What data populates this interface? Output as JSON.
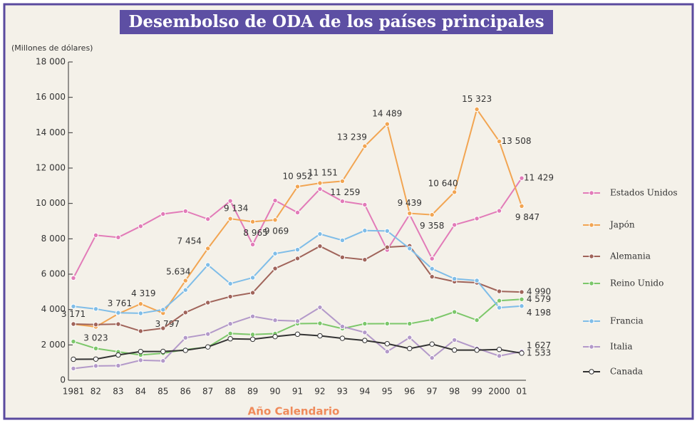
{
  "chart_data": {
    "type": "line",
    "title": "Desembolso de ODA de los países principales",
    "y_label": "(Millones de dólares)",
    "x_label": "Año Calendario",
    "categories": [
      "1981",
      "82",
      "83",
      "84",
      "85",
      "86",
      "87",
      "88",
      "89",
      "90",
      "91",
      "92",
      "93",
      "94",
      "95",
      "96",
      "97",
      "98",
      "99",
      "2000",
      "01"
    ],
    "ylim": [
      0,
      18000
    ],
    "yticks": [
      0,
      {
        "value": 2000,
        "label": "2 000"
      },
      {
        "value": 4000,
        "label": "4 000"
      },
      {
        "value": 6000,
        "label": "6 000"
      },
      {
        "value": 8000,
        "label": "8 000"
      },
      {
        "value": 10000,
        "label": "10 000"
      },
      {
        "value": 12000,
        "label": "12 000"
      },
      {
        "value": 14000,
        "label": "14 000"
      },
      {
        "value": 16000,
        "label": "16 000"
      },
      {
        "value": 18000,
        "label": "18 000"
      }
    ],
    "series": [
      {
        "name": "Estados Unidos",
        "color": "#e27bb8",
        "values": [
          5782,
          8202,
          8081,
          8711,
          9403,
          9564,
          9115,
          10141,
          7676,
          10166,
          9484,
          10815,
          10123,
          9927,
          7367,
          9377,
          6878,
          8786,
          9145,
          9581,
          11429
        ],
        "value_labels": [
          null,
          null,
          null,
          null,
          null,
          null,
          null,
          null,
          null,
          null,
          null,
          null,
          null,
          null,
          null,
          null,
          null,
          null,
          null,
          null,
          "11 429"
        ]
      },
      {
        "name": "Japón",
        "color": "#f2a552",
        "values": [
          3171,
          3023,
          3761,
          4319,
          3797,
          5634,
          7454,
          9134,
          8965,
          9069,
          10952,
          11151,
          11259,
          13239,
          14489,
          9439,
          9358,
          10640,
          15323,
          13508,
          9847
        ],
        "value_labels": [
          "3 171",
          "3 023",
          "3 761",
          "4 319",
          "3 797",
          "5.634",
          "7 454",
          "9 134",
          "8 965",
          "9 069",
          "10 952",
          "11 151",
          "11 259",
          "13 239",
          "14 489",
          "9 439",
          "9 358",
          "10 640",
          "15 323",
          "13 508",
          "9 847"
        ]
      },
      {
        "name": "Alemania",
        "color": "#a0645a",
        "values": [
          3181,
          3152,
          3176,
          2782,
          2942,
          3832,
          4391,
          4731,
          4949,
          6320,
          6890,
          7583,
          6954,
          6818,
          7524,
          7601,
          5857,
          5581,
          5515,
          5030,
          4990
        ],
        "value_labels": [
          null,
          null,
          null,
          null,
          null,
          null,
          null,
          null,
          null,
          null,
          null,
          null,
          null,
          null,
          null,
          null,
          null,
          null,
          null,
          null,
          "4 990"
        ]
      },
      {
        "name": "Reino Unido",
        "color": "#7cc76a",
        "values": [
          2192,
          1800,
          1610,
          1430,
          1530,
          1737,
          1871,
          2645,
          2587,
          2638,
          3201,
          3217,
          2920,
          3197,
          3202,
          3199,
          3433,
          3864,
          3401,
          4501,
          4579
        ],
        "value_labels": [
          null,
          null,
          null,
          null,
          null,
          null,
          null,
          null,
          null,
          null,
          null,
          null,
          null,
          null,
          null,
          null,
          null,
          null,
          null,
          null,
          "4 579"
        ]
      },
      {
        "name": "Francia",
        "color": "#7fbde8",
        "values": [
          4177,
          4034,
          3815,
          3788,
          3995,
          5105,
          6525,
          5463,
          5802,
          7163,
          7386,
          8270,
          7915,
          8466,
          8443,
          7451,
          6307,
          5742,
          5639,
          4105,
          4198
        ],
        "value_labels": [
          null,
          null,
          null,
          null,
          null,
          null,
          null,
          null,
          null,
          null,
          null,
          null,
          null,
          null,
          null,
          null,
          null,
          null,
          null,
          null,
          "4 198"
        ]
      },
      {
        "name": "Italia",
        "color": "#b399c9",
        "values": [
          666,
          811,
          827,
          1133,
          1098,
          2403,
          2615,
          3193,
          3613,
          3395,
          3347,
          4122,
          3043,
          2705,
          1623,
          2416,
          1266,
          2278,
          1806,
          1376,
          1627
        ],
        "value_labels": [
          null,
          null,
          null,
          null,
          null,
          null,
          null,
          null,
          null,
          null,
          null,
          null,
          null,
          null,
          null,
          null,
          null,
          null,
          null,
          null,
          "1 627"
        ]
      },
      {
        "name": "Canada",
        "color": "#333333",
        "values": [
          1189,
          1197,
          1429,
          1625,
          1631,
          1695,
          1885,
          2347,
          2320,
          2470,
          2604,
          2515,
          2373,
          2250,
          2067,
          1795,
          2045,
          1707,
          1706,
          1744,
          1533
        ],
        "value_labels": [
          null,
          null,
          null,
          null,
          null,
          null,
          null,
          null,
          null,
          null,
          null,
          null,
          null,
          null,
          null,
          null,
          null,
          null,
          null,
          null,
          "1 533"
        ]
      }
    ]
  }
}
